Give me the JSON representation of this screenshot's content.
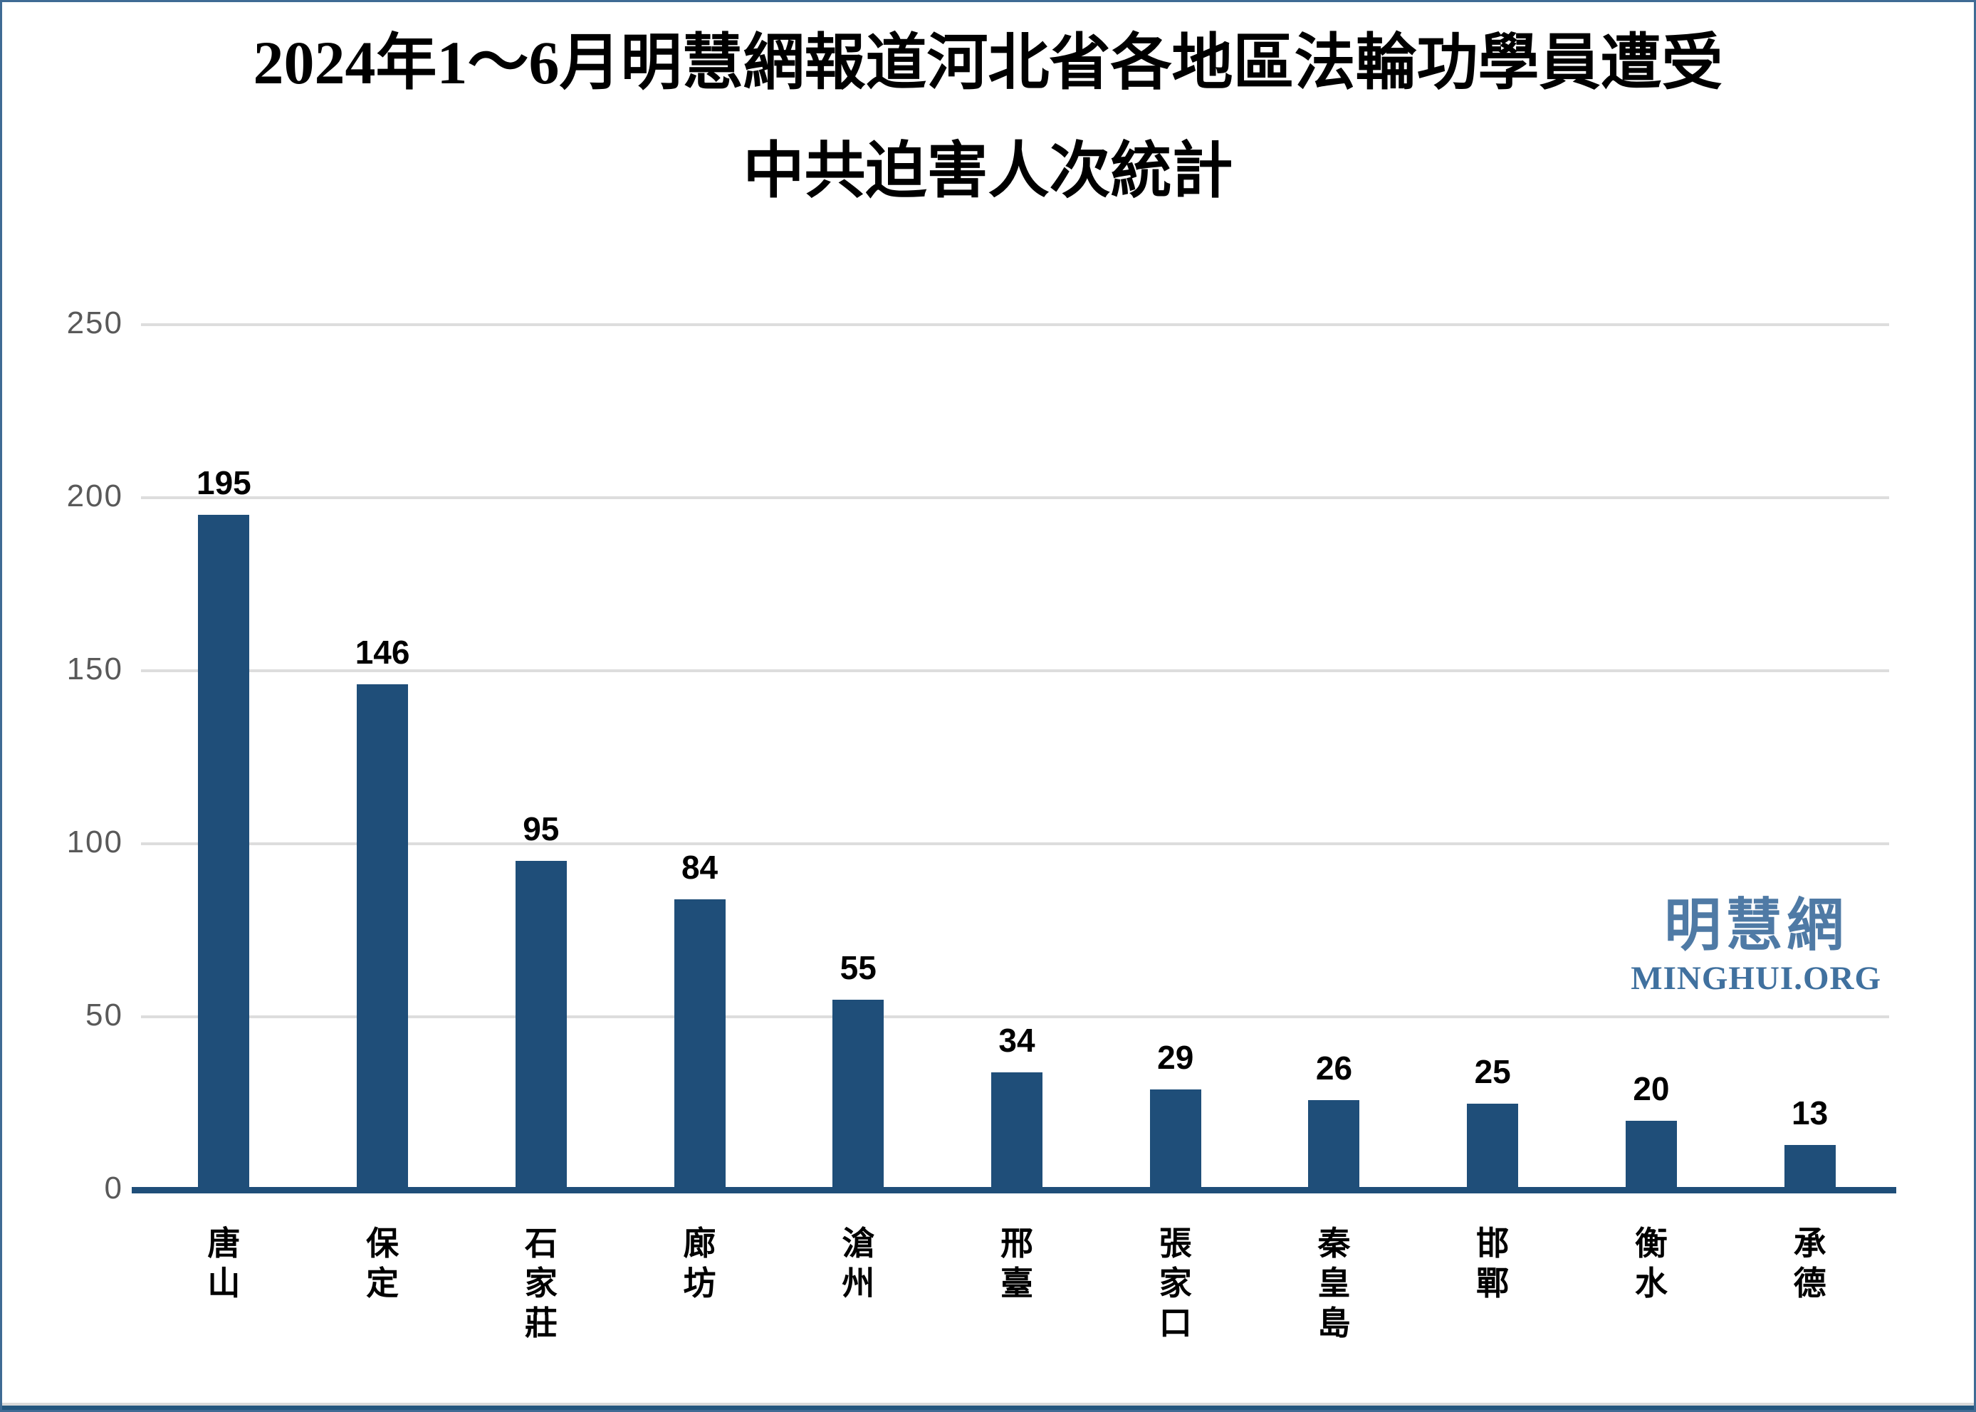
{
  "title": {
    "line1": "2024年1～6月明慧網報道河北省各地區法輪功學員遭受",
    "line2": "中共迫害人次統計"
  },
  "watermark": {
    "zh": "明慧網",
    "en": "MINGHUI.ORG",
    "zh_color": "#4f7aa5",
    "en_color": "#40719f"
  },
  "chart_data": {
    "type": "bar",
    "title": "2024年1～6月明慧網報道河北省各地區法輪功學員遭受中共迫害人次統計",
    "categories": [
      "唐山",
      "保定",
      "石家莊",
      "廊坊",
      "滄州",
      "邢臺",
      "張家口",
      "秦皇島",
      "邯鄲",
      "衡水",
      "承德"
    ],
    "values": [
      195,
      146,
      95,
      84,
      55,
      34,
      29,
      26,
      25,
      20,
      13
    ],
    "xlabel": "",
    "ylabel": "",
    "ylim": [
      0,
      250
    ],
    "yticks": [
      0,
      50,
      100,
      150,
      200,
      250
    ],
    "grid": "horizontal",
    "legend": "none",
    "bar_color": "#1f4e79",
    "axis_line_color": "#1f4e79",
    "grid_color": "#dddddd",
    "tick_label_color": "#595959",
    "value_label_color": "#000000"
  },
  "frame": {
    "border_color": "#3f6b94",
    "footer_gray_color": "#d9d9d9",
    "footer_blue_color": "#24567e"
  }
}
